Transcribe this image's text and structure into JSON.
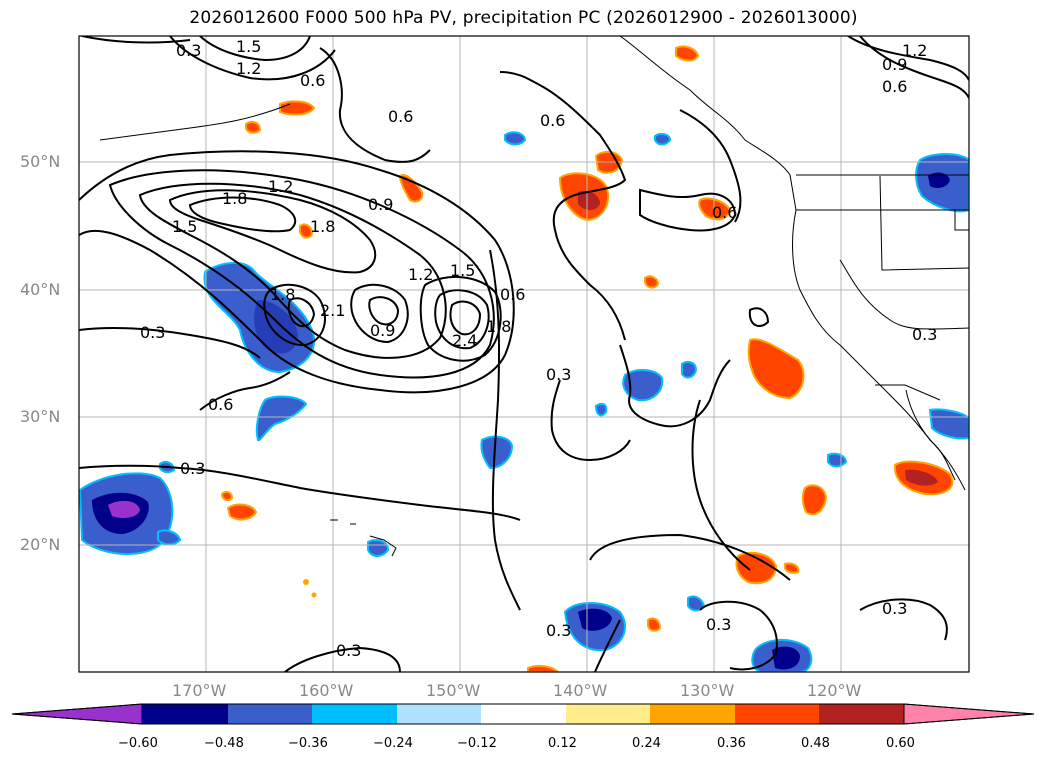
{
  "title": "2026012600 F000 500 hPa PV, precipitation PC (2026012900 - 2026013000)",
  "lat_labels": [
    "50°N",
    "40°N",
    "30°N",
    "20°N"
  ],
  "lon_labels": [
    "170°W",
    "160°W",
    "150°W",
    "140°W",
    "130°W",
    "120°W"
  ],
  "colorbar": {
    "ticks": [
      "−0.60",
      "−0.48",
      "−0.36",
      "−0.24",
      "−0.12",
      "0.12",
      "0.24",
      "0.36",
      "0.48",
      "0.60"
    ],
    "colors": [
      "#9932cc",
      "#00008b",
      "#3a5fcd",
      "#00bfff",
      "#b0e2ff",
      "#ffffff",
      "#ffec8b",
      "#ffa500",
      "#ff4500",
      "#b22222",
      "#ff82ab"
    ]
  },
  "contour_labels": [
    "1.5",
    "1.2",
    "0.6",
    "0.6",
    "0.6",
    "1.2",
    "0.9",
    "0.6",
    "1.2",
    "1.8",
    "1.5",
    "0.9",
    "1.8",
    "1.5",
    "1.2",
    "0.6",
    "0.3",
    "0.6",
    "0.9",
    "2.4",
    "1.8",
    "0.3",
    "0.3",
    "0.3",
    "0.3",
    "0.3",
    "0.3",
    "0.3",
    "1.8",
    "2.1",
    "0.3",
    "0.6"
  ]
}
